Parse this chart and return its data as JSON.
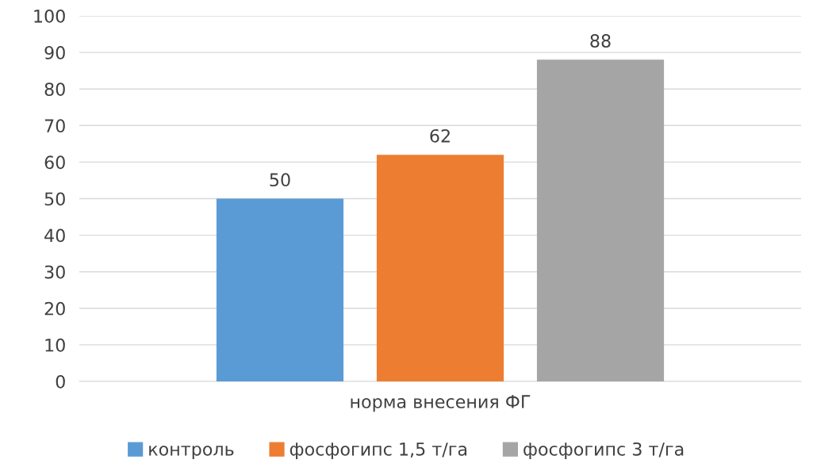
{
  "chart_data": {
    "type": "bar",
    "categories": [
      "норма внесения ФГ"
    ],
    "series": [
      {
        "name": "контроль",
        "color": "#5b9bd5",
        "values": [
          50
        ]
      },
      {
        "name": "фосфогипс 1,5 т/га",
        "color": "#ed7d31",
        "values": [
          62
        ]
      },
      {
        "name": "фосфогипс 3 т/га",
        "color": "#a5a5a5",
        "values": [
          88
        ]
      }
    ],
    "ylim": [
      0,
      100
    ],
    "yticks": [
      0,
      10,
      20,
      30,
      40,
      50,
      60,
      70,
      80,
      90,
      100
    ],
    "grid": "y",
    "legend": "bottom",
    "data_labels": true
  }
}
